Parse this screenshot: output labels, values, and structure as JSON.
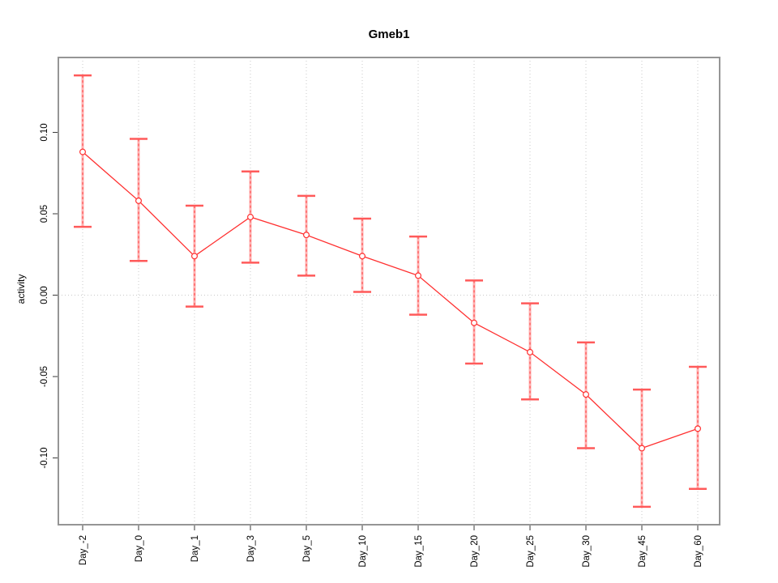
{
  "chart_data": {
    "type": "line",
    "title": "Gmeb1",
    "ylabel": "activity",
    "xlabel": "",
    "categories": [
      "Day_-2",
      "Day_0",
      "Day_1",
      "Day_3",
      "Day_5",
      "Day_10",
      "Day_15",
      "Day_20",
      "Day_25",
      "Day_30",
      "Day_45",
      "Day_60"
    ],
    "series": [
      {
        "name": "activity",
        "values": [
          0.088,
          0.058,
          0.024,
          0.048,
          0.037,
          0.024,
          0.012,
          -0.017,
          -0.035,
          -0.061,
          -0.094,
          -0.082
        ],
        "lower": [
          0.042,
          0.021,
          -0.007,
          0.02,
          0.012,
          0.002,
          -0.012,
          -0.042,
          -0.064,
          -0.094,
          -0.13,
          -0.119
        ],
        "upper": [
          0.135,
          0.096,
          0.055,
          0.076,
          0.061,
          0.047,
          0.036,
          0.009,
          -0.005,
          -0.029,
          -0.058,
          -0.044
        ]
      }
    ],
    "yticks": [
      -0.1,
      -0.05,
      0.0,
      0.05,
      0.1
    ],
    "ytick_labels": [
      "-0.10",
      "-0.05",
      "0.00",
      "0.05",
      "0.10"
    ],
    "ylim": [
      -0.141,
      0.146
    ],
    "legend": null,
    "grid": {
      "vertical_at_categories": true,
      "horizontal_at_zero": true,
      "style": "dotted"
    },
    "colors": {
      "line": "#ff3030",
      "marker_stroke": "#ff3030",
      "marker_fill": "#ffffff",
      "error_bar_body": "#ffb0b0",
      "error_bar_dash": "#ff4040",
      "error_bar_cap": "#ff5a5a",
      "gridline": "#c9c9c9",
      "box": "#959595",
      "tick": "#3a3a3a",
      "text": "#000000",
      "background": "#ffffff"
    }
  }
}
